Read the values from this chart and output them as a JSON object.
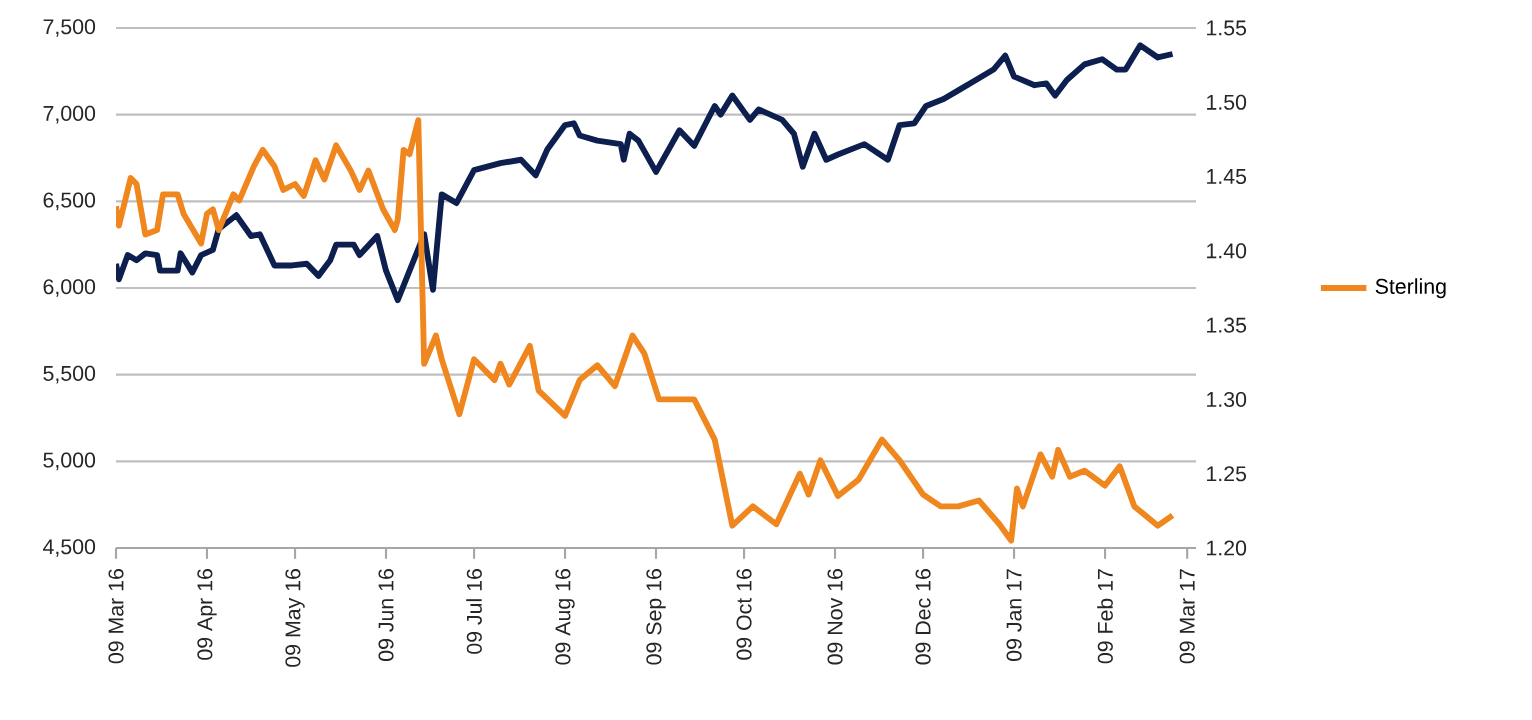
{
  "chart_data": {
    "type": "line",
    "xlim": [
      "2016-03-09",
      "2017-03-12"
    ],
    "xticks": [
      {
        "value": "2016-03-09",
        "label": "09 Mar 16"
      },
      {
        "value": "2016-04-09",
        "label": "09 Apr 16"
      },
      {
        "value": "2016-05-09",
        "label": "09 May 16"
      },
      {
        "value": "2016-06-09",
        "label": "09 Jun 16"
      },
      {
        "value": "2016-07-09",
        "label": "09 Jul 16"
      },
      {
        "value": "2016-08-09",
        "label": "09 Aug 16"
      },
      {
        "value": "2016-09-09",
        "label": "09 Sep 16"
      },
      {
        "value": "2016-10-09",
        "label": "09 Oct 16"
      },
      {
        "value": "2016-11-09",
        "label": "09 Nov 16"
      },
      {
        "value": "2016-12-09",
        "label": "09 Dec 16"
      },
      {
        "value": "2017-01-09",
        "label": "09 Jan 17"
      },
      {
        "value": "2017-02-09",
        "label": "09 Feb 17"
      },
      {
        "value": "2017-03-09",
        "label": "09 Mar 17"
      }
    ],
    "ylim": [
      4500,
      7500
    ],
    "yticks": [
      {
        "value": 4500,
        "label": "4,500"
      },
      {
        "value": 5000,
        "label": "5,000"
      },
      {
        "value": 5500,
        "label": "5,500"
      },
      {
        "value": 6000,
        "label": "6,000"
      },
      {
        "value": 6500,
        "label": "6,500"
      },
      {
        "value": 7000,
        "label": "7,000"
      },
      {
        "value": 7500,
        "label": "7,500"
      }
    ],
    "y2lim": [
      1.2,
      1.55
    ],
    "y2ticks": [
      {
        "value": 1.2,
        "label": "1.20"
      },
      {
        "value": 1.25,
        "label": "1.25"
      },
      {
        "value": 1.3,
        "label": "1.30"
      },
      {
        "value": 1.35,
        "label": "1.35"
      },
      {
        "value": 1.4,
        "label": "1.40"
      },
      {
        "value": 1.45,
        "label": "1.45"
      },
      {
        "value": 1.5,
        "label": "1.50"
      },
      {
        "value": 1.55,
        "label": "1.55"
      }
    ],
    "grid": "y",
    "legend": "right",
    "line_style": "solid",
    "series": [
      {
        "color": "#0d1f4f",
        "x": [
          "2016-03-09",
          "2016-03-10",
          "2016-03-13",
          "2016-03-16",
          "2016-03-19",
          "2016-03-23",
          "2016-03-24",
          "2016-03-30",
          "2016-03-31",
          "2016-04-04",
          "2016-04-07",
          "2016-04-11",
          "2016-04-13",
          "2016-04-19",
          "2016-04-24",
          "2016-04-27",
          "2016-05-02",
          "2016-05-08",
          "2016-05-13",
          "2016-05-17",
          "2016-05-21",
          "2016-05-23",
          "2016-05-29",
          "2016-05-31",
          "2016-06-06",
          "2016-06-09",
          "2016-06-13",
          "2016-06-22",
          "2016-06-25",
          "2016-06-28",
          "2016-07-03",
          "2016-07-09",
          "2016-07-18",
          "2016-07-25",
          "2016-07-30",
          "2016-08-03",
          "2016-08-09",
          "2016-08-12",
          "2016-08-14",
          "2016-08-20",
          "2016-08-28",
          "2016-08-29",
          "2016-08-31",
          "2016-09-03",
          "2016-09-09",
          "2016-09-17",
          "2016-09-22",
          "2016-09-29",
          "2016-10-01",
          "2016-10-05",
          "2016-10-11",
          "2016-10-14",
          "2016-10-22",
          "2016-10-26",
          "2016-10-29",
          "2016-11-02",
          "2016-11-06",
          "2016-11-10",
          "2016-11-19",
          "2016-11-27",
          "2016-12-01",
          "2016-12-06",
          "2016-12-10",
          "2016-12-16",
          "2016-12-21",
          "2016-12-27",
          "2017-01-02",
          "2017-01-06",
          "2017-01-09",
          "2017-01-16",
          "2017-01-20",
          "2017-01-23",
          "2017-01-27",
          "2017-02-02",
          "2017-02-08",
          "2017-02-13",
          "2017-02-16",
          "2017-02-21",
          "2017-02-27",
          "2017-03-04"
        ],
        "values": [
          6140,
          6050,
          6190,
          6160,
          6200,
          6190,
          6100,
          6100,
          6200,
          6090,
          6190,
          6220,
          6340,
          6420,
          6300,
          6310,
          6130,
          6130,
          6140,
          6070,
          6160,
          6250,
          6250,
          6190,
          6300,
          6100,
          5930,
          6310,
          5990,
          6540,
          6490,
          6680,
          6720,
          6740,
          6650,
          6800,
          6940,
          6950,
          6880,
          6850,
          6830,
          6740,
          6890,
          6850,
          6670,
          6910,
          6820,
          7050,
          7000,
          7110,
          6970,
          7030,
          6970,
          6890,
          6700,
          6890,
          6740,
          6770,
          6830,
          6740,
          6940,
          6950,
          7050,
          7090,
          7140,
          7200,
          7260,
          7340,
          7220,
          7170,
          7180,
          7110,
          7200,
          7290,
          7320,
          7260,
          7260,
          7400,
          7330,
          7350
        ]
      },
      {
        "name": "Sterling",
        "color": "#f0861e",
        "axis": "y2",
        "x": [
          "2016-03-09",
          "2016-03-10",
          "2016-03-14",
          "2016-03-16",
          "2016-03-19",
          "2016-03-23",
          "2016-03-25",
          "2016-03-30",
          "2016-04-01",
          "2016-04-07",
          "2016-04-09",
          "2016-04-11",
          "2016-04-13",
          "2016-04-18",
          "2016-04-20",
          "2016-04-25",
          "2016-04-28",
          "2016-05-02",
          "2016-05-05",
          "2016-05-09",
          "2016-05-12",
          "2016-05-16",
          "2016-05-19",
          "2016-05-23",
          "2016-05-28",
          "2016-05-31",
          "2016-06-03",
          "2016-06-08",
          "2016-06-12",
          "2016-06-13",
          "2016-06-15",
          "2016-06-17",
          "2016-06-20",
          "2016-06-22",
          "2016-06-26",
          "2016-06-28",
          "2016-07-04",
          "2016-07-09",
          "2016-07-16",
          "2016-07-18",
          "2016-07-21",
          "2016-07-28",
          "2016-07-31",
          "2016-08-09",
          "2016-08-14",
          "2016-08-20",
          "2016-08-26",
          "2016-09-01",
          "2016-09-05",
          "2016-09-10",
          "2016-09-17",
          "2016-09-22",
          "2016-09-29",
          "2016-10-05",
          "2016-10-12",
          "2016-10-20",
          "2016-10-28",
          "2016-10-31",
          "2016-11-04",
          "2016-11-10",
          "2016-11-17",
          "2016-11-25",
          "2016-12-01",
          "2016-12-09",
          "2016-12-15",
          "2016-12-21",
          "2016-12-28",
          "2017-01-04",
          "2017-01-08",
          "2017-01-10",
          "2017-01-12",
          "2017-01-18",
          "2017-01-22",
          "2017-01-24",
          "2017-01-28",
          "2017-02-02",
          "2017-02-09",
          "2017-02-14",
          "2017-02-19",
          "2017-02-27",
          "2017-03-04"
        ],
        "values": [
          1.43,
          1.417,
          1.449,
          1.445,
          1.411,
          1.414,
          1.438,
          1.438,
          1.425,
          1.405,
          1.425,
          1.428,
          1.414,
          1.438,
          1.434,
          1.457,
          1.468,
          1.457,
          1.441,
          1.445,
          1.437,
          1.461,
          1.448,
          1.471,
          1.454,
          1.441,
          1.454,
          1.428,
          1.414,
          1.421,
          1.468,
          1.465,
          1.488,
          1.324,
          1.343,
          1.327,
          1.29,
          1.327,
          1.313,
          1.324,
          1.31,
          1.336,
          1.306,
          1.289,
          1.313,
          1.323,
          1.309,
          1.343,
          1.331,
          1.3,
          1.3,
          1.3,
          1.273,
          1.215,
          1.228,
          1.216,
          1.25,
          1.236,
          1.259,
          1.235,
          1.246,
          1.273,
          1.259,
          1.236,
          1.228,
          1.228,
          1.232,
          1.216,
          1.205,
          1.24,
          1.228,
          1.263,
          1.248,
          1.266,
          1.248,
          1.252,
          1.242,
          1.255,
          1.228,
          1.215,
          1.222
        ]
      }
    ]
  }
}
